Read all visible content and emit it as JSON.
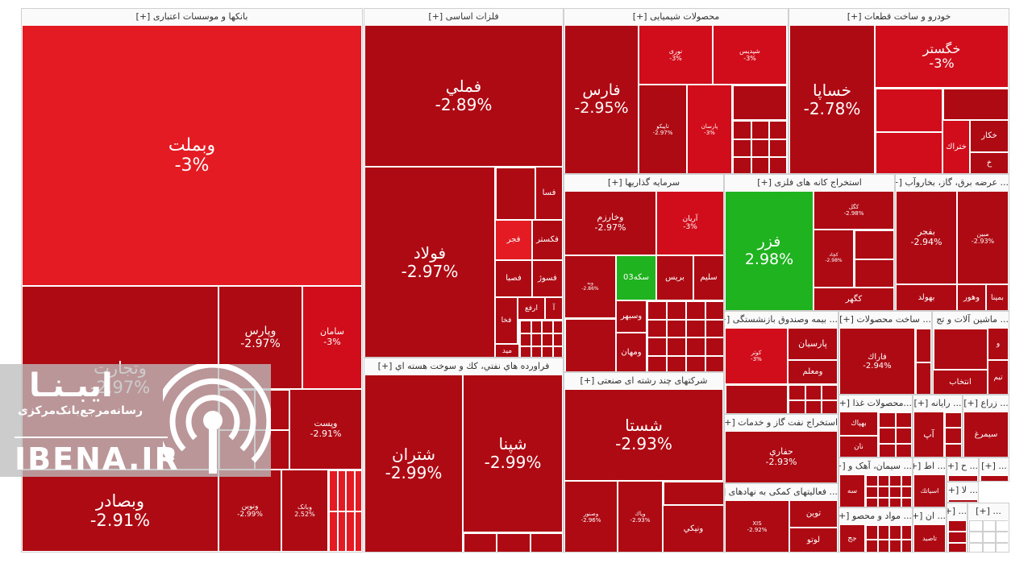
{
  "chart_data": {
    "type": "treemap",
    "sectors": [
      {
        "id": "banks",
        "title": "بانکها و موسسات اعتباری [+]",
        "tiles": [
          {
            "symbol": "وبملت",
            "change": "-3%"
          },
          {
            "symbol": "وتجارت",
            "change": "-2.97%"
          },
          {
            "symbol": "وپارس",
            "change": "-2.97%"
          },
          {
            "symbol": "سامان",
            "change": "-3%"
          },
          {
            "symbol": "وبصادر",
            "change": "-2.91%"
          },
          {
            "symbol": "وپست",
            "change": "-2.91%"
          },
          {
            "symbol": "ونوین",
            "change": "-2.99%"
          },
          {
            "symbol": "وبانک",
            "change": "2.52%"
          }
        ]
      },
      {
        "id": "metals",
        "title": "فلزات اساسی [+]",
        "tiles": [
          {
            "symbol": "فملي",
            "change": "-2.89%"
          },
          {
            "symbol": "فولاد",
            "change": "-2.97%"
          },
          {
            "symbol": "فسا",
            "change": ""
          },
          {
            "symbol": "فجر",
            "change": ""
          },
          {
            "symbol": "فكستر",
            "change": ""
          },
          {
            "symbol": "فصبا",
            "change": ""
          },
          {
            "symbol": "فسوژ",
            "change": ""
          },
          {
            "symbol": "ارفع",
            "change": ""
          },
          {
            "symbol": "فخا",
            "change": ""
          },
          {
            "symbol": "آ",
            "change": ""
          },
          {
            "symbol": "ميد",
            "change": ""
          }
        ]
      },
      {
        "id": "chemicals",
        "title": "محصولات شیمیایی [+]",
        "tiles": [
          {
            "symbol": "فارس",
            "change": "-2.95%"
          },
          {
            "symbol": "نوری",
            "change": "-3%"
          },
          {
            "symbol": "شپدیس",
            "change": "-3%"
          },
          {
            "symbol": "تاپیکو",
            "change": "-2.97%"
          },
          {
            "symbol": "پارسان",
            "change": "-3%"
          }
        ]
      },
      {
        "id": "auto",
        "title": "خودرو و ساخت قطعات [+]",
        "tiles": [
          {
            "symbol": "خساپا",
            "change": "-2.78%"
          },
          {
            "symbol": "خگستر",
            "change": "-3%"
          },
          {
            "symbol": "خكار",
            "change": ""
          },
          {
            "symbol": "ختراك",
            "change": ""
          },
          {
            "symbol": "خ",
            "change": ""
          }
        ]
      },
      {
        "id": "oilproducts",
        "title": "فراورده هاي نفتي، كك و سوخت هسته اي [+]",
        "tiles": [
          {
            "symbol": "شتران",
            "change": "-2.99%"
          },
          {
            "symbol": "شپنا",
            "change": "-2.99%"
          }
        ]
      },
      {
        "id": "investment",
        "title": "سرمایه گذاریها [+]",
        "tiles": [
          {
            "symbol": "وخارزم",
            "change": "-2.97%"
          },
          {
            "symbol": "آریان",
            "change": "-3%"
          },
          {
            "symbol": "سکه03",
            "change": ""
          },
          {
            "symbol": "بريس",
            "change": ""
          },
          {
            "symbol": "سليم",
            "change": ""
          },
          {
            "symbol": "وسبهر",
            "change": ""
          },
          {
            "symbol": "ومهان",
            "change": ""
          },
          {
            "symbol": "وبه",
            "change": "-2.86%"
          }
        ]
      },
      {
        "id": "mining",
        "title": "استخراج کانه های فلزی [+]",
        "tiles": [
          {
            "symbol": "فزر",
            "change": "2.98%"
          },
          {
            "symbol": "كگل",
            "change": "-2.98%"
          },
          {
            "symbol": "کچاد",
            "change": "-2.98%"
          },
          {
            "symbol": "كگهر",
            "change": ""
          }
        ]
      },
      {
        "id": "utilities",
        "title": "... عرضه برق، گاز، بخاروآب [+]",
        "tiles": [
          {
            "symbol": "بفجر",
            "change": "-2.94%"
          },
          {
            "symbol": "مبين",
            "change": "-2.93%"
          },
          {
            "symbol": "بهولد",
            "change": ""
          },
          {
            "symbol": "وهور",
            "change": ""
          },
          {
            "symbol": "بمپنا",
            "change": ""
          }
        ]
      },
      {
        "id": "multi",
        "title": "شرکتهای چند رشته ای صنعتی [+]",
        "tiles": [
          {
            "symbol": "شستا",
            "change": "-2.93%"
          },
          {
            "symbol": "وصنور",
            "change": "-2.96%"
          },
          {
            "symbol": "وپاك",
            "change": "-2.93%"
          },
          {
            "symbol": "ونيكي",
            "change": ""
          }
        ]
      },
      {
        "id": "insurance",
        "title": "... بیمه وصندوق بازنشستگی [+]",
        "tiles": [
          {
            "symbol": "كوثر",
            "change": "-3%"
          },
          {
            "symbol": "پارسیان",
            "change": ""
          },
          {
            "symbol": "ومعلم",
            "change": ""
          }
        ]
      },
      {
        "id": "metalproducts",
        "title": "... ساخت محصولات [+]",
        "tiles": [
          {
            "symbol": "فاراك",
            "change": "-2.94%"
          }
        ]
      },
      {
        "id": "machinery",
        "title": "... ماشین آلات و تج [+]",
        "tiles": [
          {
            "symbol": "انتخاب",
            "change": ""
          },
          {
            "symbol": "تيم",
            "change": ""
          },
          {
            "symbol": "و",
            "change": ""
          }
        ]
      },
      {
        "id": "oilgas",
        "title": "استخراج نفت گاز و خدمات [+]",
        "tiles": [
          {
            "symbol": "حفاري",
            "change": "-2.93%"
          }
        ]
      },
      {
        "id": "food",
        "title": "...محصولات غذا [+]",
        "tiles": [
          {
            "symbol": "بهپاك",
            "change": ""
          },
          {
            "symbol": "نان",
            "change": ""
          }
        ]
      },
      {
        "id": "computer",
        "title": "... رایانه [+]",
        "tiles": [
          {
            "symbol": "آپ",
            "change": ""
          }
        ]
      },
      {
        "id": "farming",
        "title": "... زراع [+]",
        "tiles": [
          {
            "symbol": "سيمرغ",
            "change": ""
          }
        ]
      },
      {
        "id": "support",
        "title": "... فعالیتهای کمکی به نهادهای [+]",
        "tiles": [
          {
            "symbol": "توين",
            "change": ""
          },
          {
            "symbol": "لوتو",
            "change": ""
          },
          {
            "symbol": "XIS",
            "change": "-2.92%"
          }
        ]
      },
      {
        "id": "cement",
        "title": "... سیمان، آهک و [+]",
        "tiles": [
          {
            "symbol": "سه",
            "change": ""
          }
        ]
      },
      {
        "id": "minerals",
        "title": "... مواد و محصو [+]",
        "tiles": [
          {
            "symbol": "جج",
            "change": ""
          }
        ]
      },
      {
        "id": "telecom",
        "title": "... اط [+]",
        "tiles": [
          {
            "symbol": "اسياتك",
            "change": ""
          }
        ]
      },
      {
        "id": "pharma",
        "title": "... ان [+]",
        "tiles": [
          {
            "symbol": "تاصيد",
            "change": ""
          }
        ]
      },
      {
        "id": "small1",
        "title": "... ح [+]",
        "tiles": []
      },
      {
        "id": "small2",
        "title": "... [+]",
        "tiles": []
      },
      {
        "id": "small3",
        "title": "... لا [+]",
        "tiles": []
      },
      {
        "id": "small4",
        "title": "... [+]",
        "tiles": []
      },
      {
        "id": "small5",
        "title": "... [+]",
        "tiles": []
      }
    ],
    "colors": {
      "up": "#1fb31f",
      "down_strong": "#ad0a14",
      "down": "#d10d1b",
      "down_bright": "#e41b23",
      "neutral": "#ffffff"
    }
  },
  "watermark": {
    "name_fa": "ایبـنـا",
    "tagline_fa": "رسانه‌مرجع‌بانک‌مرکزی",
    "name_latin": "IBENA.IR",
    "icon": "broadcast-icon"
  }
}
